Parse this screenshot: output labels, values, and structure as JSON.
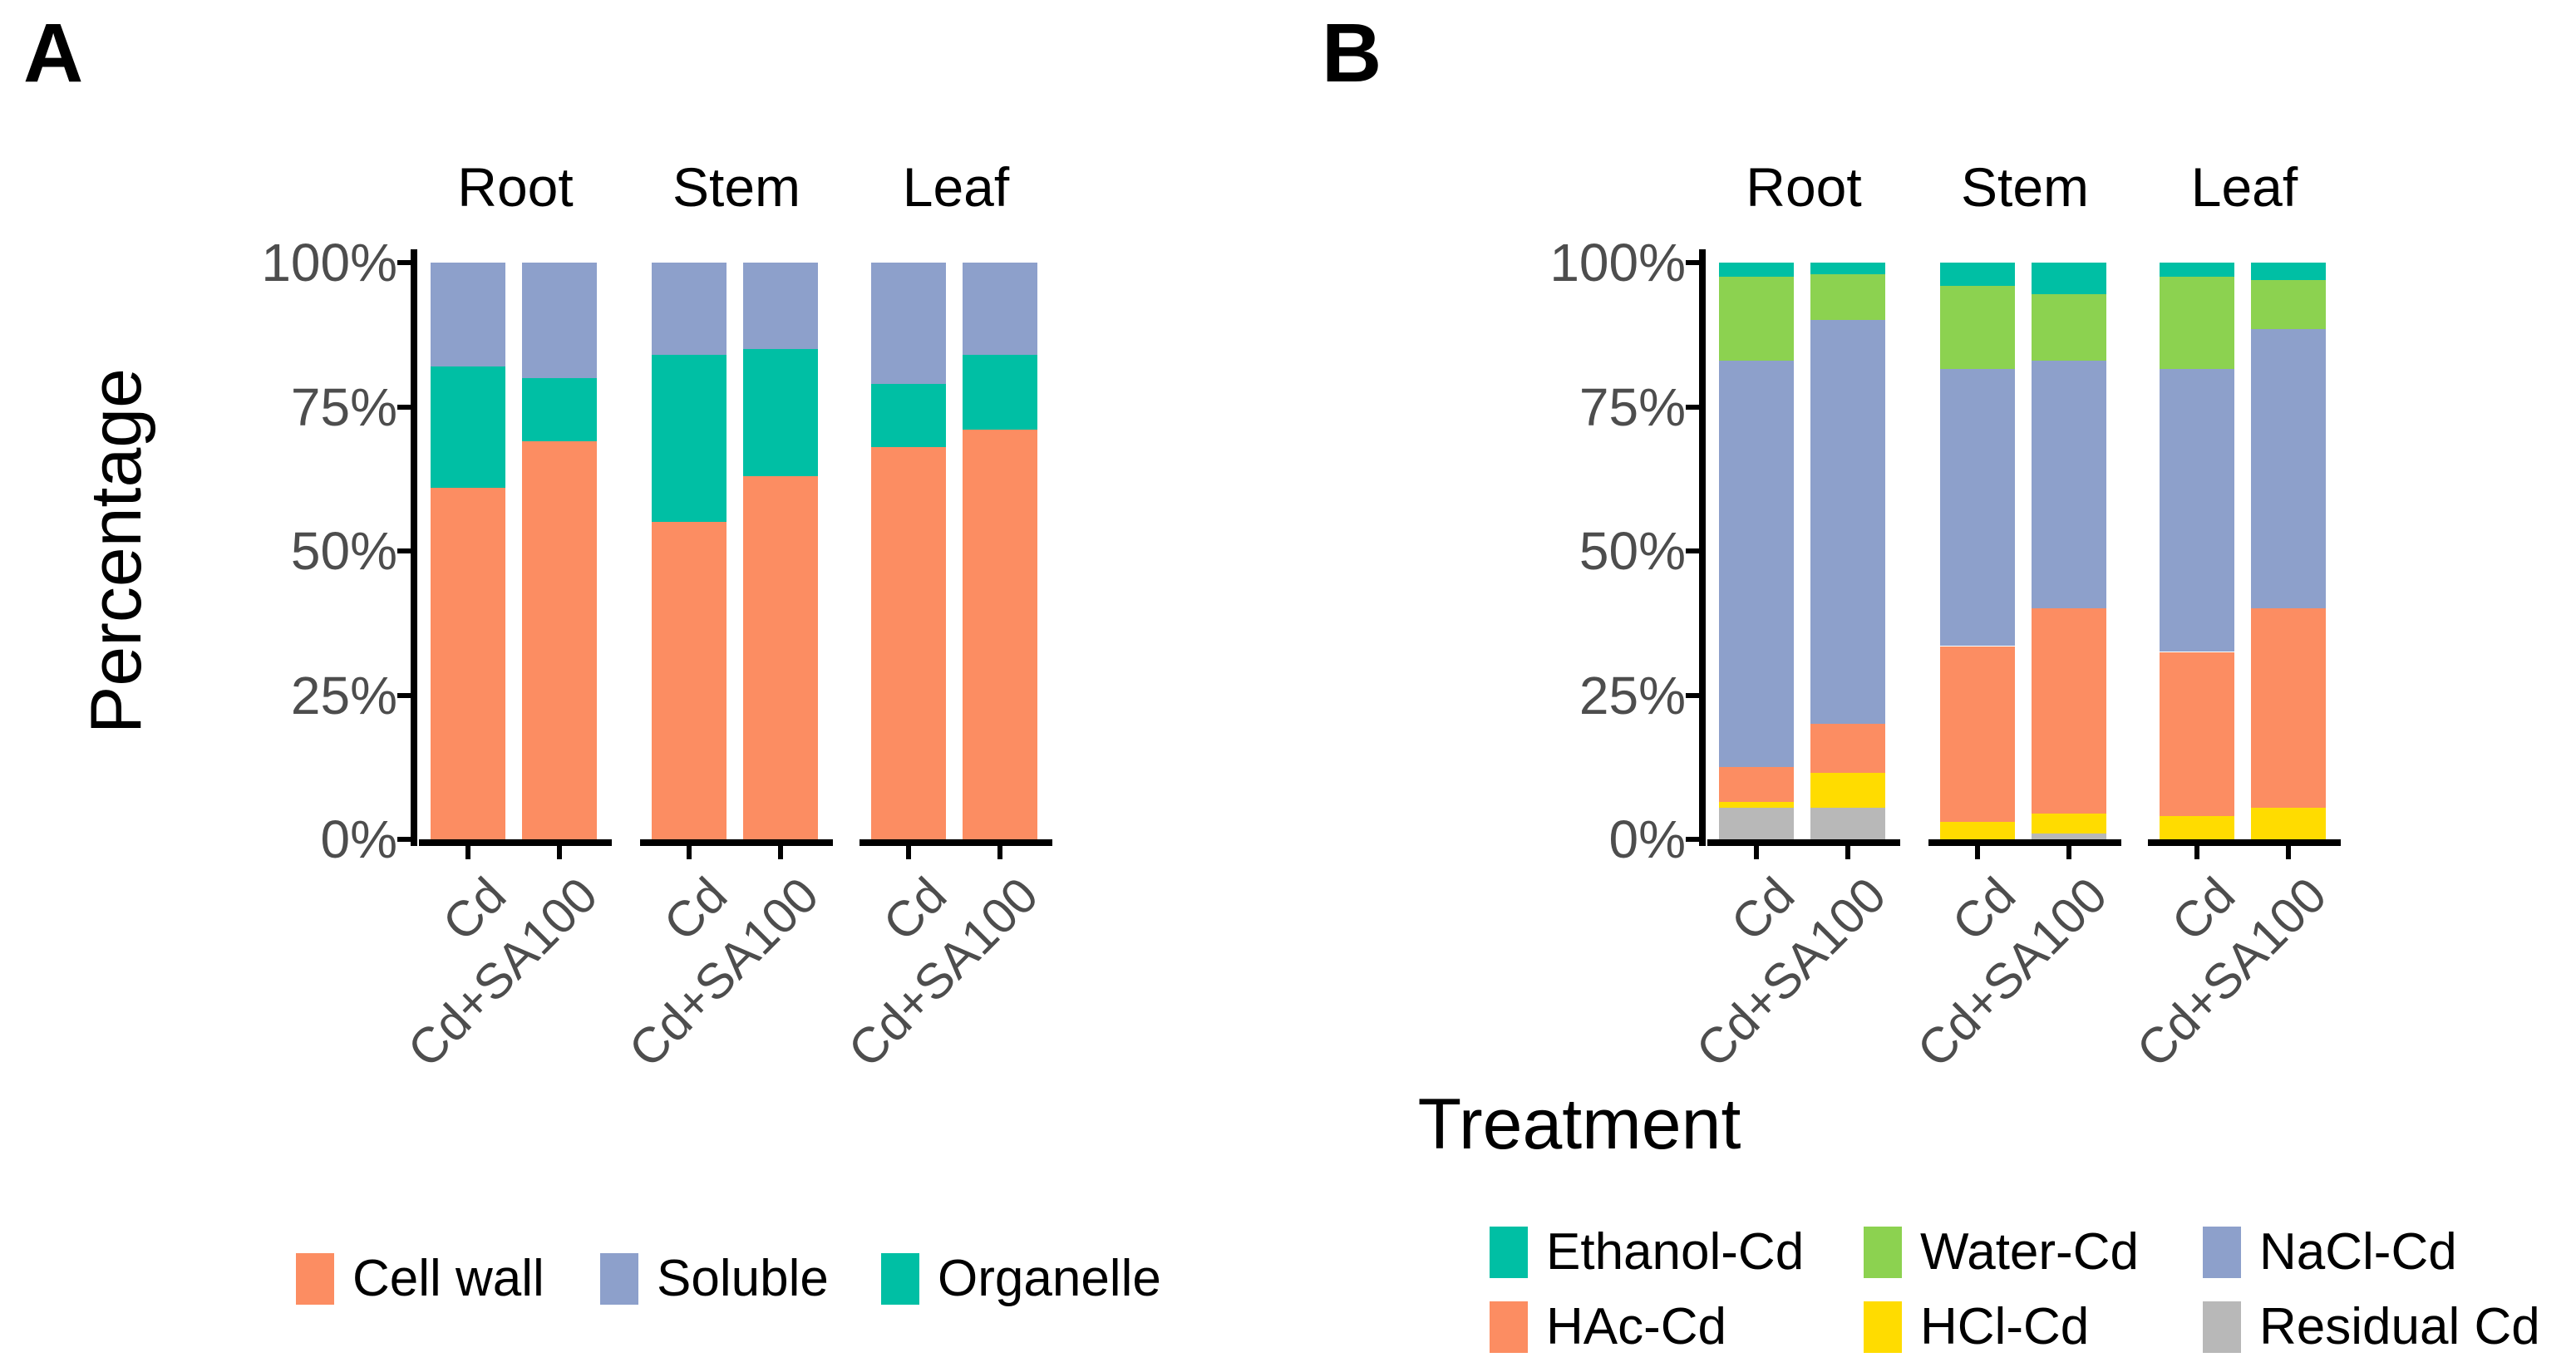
{
  "figure": {
    "panel_a_label": "A",
    "panel_b_label": "B",
    "background": "#FFFFFF"
  },
  "colors": {
    "orange": "#FC8D62",
    "blue": "#8DA0CB",
    "teal": "#00BFA4",
    "green": "#8CD250",
    "yellow": "#FFDC00",
    "gray": "#B8B8B8",
    "axis": "#000000",
    "tick_text": "#4D4D4D"
  },
  "axes": {
    "y_ticks": [
      "100%",
      "75%",
      "50%",
      "25%",
      "0%"
    ],
    "x_categories": [
      "Cd",
      "Cd+SA100"
    ],
    "facets": [
      "Root",
      "Stem",
      "Leaf"
    ],
    "panel_a_y_title": "Percentage",
    "panel_b_x_title": "Treatment"
  },
  "legend_a": {
    "items": [
      {
        "label": "Cell wall",
        "color": "#FC8D62"
      },
      {
        "label": "Soluble",
        "color": "#8DA0CB"
      },
      {
        "label": "Organelle",
        "color": "#00BFA4"
      }
    ]
  },
  "legend_b": {
    "items": [
      {
        "label": "Ethanol-Cd",
        "color": "#00BFA4"
      },
      {
        "label": "Water-Cd",
        "color": "#8CD250"
      },
      {
        "label": "NaCl-Cd",
        "color": "#8DA0CB"
      },
      {
        "label": "HAc-Cd",
        "color": "#FC8D62"
      },
      {
        "label": "HCl-Cd",
        "color": "#FFDC00"
      },
      {
        "label": "Residual Cd",
        "color": "#B8B8B8"
      }
    ]
  },
  "chart_data": [
    {
      "id": "A",
      "type": "bar",
      "subtype": "stacked_percent",
      "title": "Subcellular distribution of Cd",
      "facets": [
        "Root",
        "Stem",
        "Leaf"
      ],
      "categories": [
        "Cd",
        "Cd+SA100"
      ],
      "bar_labels": [
        "Root Cd",
        "Root Cd+SA100",
        "Stem Cd",
        "Stem Cd+SA100",
        "Leaf Cd",
        "Leaf Cd+SA100"
      ],
      "ylabel": "Percentage",
      "xlabel": "",
      "ylim": [
        0,
        100
      ],
      "ytick_labels": [
        "0%",
        "25%",
        "50%",
        "75%",
        "100%"
      ],
      "grid": false,
      "legend_position": "bottom",
      "stack_order_bottom_to_top": [
        "Cell wall",
        "Organelle",
        "Soluble"
      ],
      "series": [
        {
          "name": "Cell wall",
          "color": "#FC8D62",
          "values": [
            61,
            69,
            55,
            63,
            68,
            71
          ]
        },
        {
          "name": "Organelle",
          "color": "#00BFA4",
          "values": [
            21,
            11,
            29,
            22,
            11,
            13
          ]
        },
        {
          "name": "Soluble",
          "color": "#8DA0CB",
          "values": [
            18,
            20,
            16,
            15,
            21,
            16
          ]
        }
      ]
    },
    {
      "id": "B",
      "type": "bar",
      "subtype": "stacked_percent",
      "title": "Chemical forms of Cd",
      "facets": [
        "Root",
        "Stem",
        "Leaf"
      ],
      "categories": [
        "Cd",
        "Cd+SA100"
      ],
      "bar_labels": [
        "Root Cd",
        "Root Cd+SA100",
        "Stem Cd",
        "Stem Cd+SA100",
        "Leaf Cd",
        "Leaf Cd+SA100"
      ],
      "ylabel": "",
      "xlabel": "Treatment",
      "ylim": [
        0,
        100
      ],
      "ytick_labels": [
        "0%",
        "25%",
        "50%",
        "75%",
        "100%"
      ],
      "grid": false,
      "legend_position": "bottom",
      "stack_order_bottom_to_top": [
        "Residual Cd",
        "HCl-Cd",
        "HAc-Cd",
        "NaCl-Cd",
        "Water-Cd",
        "Ethanol-Cd"
      ],
      "series": [
        {
          "name": "Residual Cd",
          "color": "#B8B8B8",
          "values": [
            5.5,
            5.5,
            0,
            1,
            0,
            0
          ]
        },
        {
          "name": "HCl-Cd",
          "color": "#FFDC00",
          "values": [
            1,
            6,
            3,
            3.5,
            4,
            5.5
          ]
        },
        {
          "name": "HAc-Cd",
          "color": "#FC8D62",
          "values": [
            6,
            8.5,
            30.5,
            35.5,
            28.5,
            34.5
          ]
        },
        {
          "name": "NaCl-Cd",
          "color": "#8DA0CB",
          "values": [
            70.5,
            70,
            48,
            43,
            49,
            48.5
          ]
        },
        {
          "name": "Water-Cd",
          "color": "#8CD250",
          "values": [
            14.5,
            8,
            14.5,
            11.5,
            16,
            8.5
          ]
        },
        {
          "name": "Ethanol-Cd",
          "color": "#00BFA4",
          "values": [
            2.5,
            2,
            4,
            5.5,
            2.5,
            3
          ]
        }
      ]
    }
  ]
}
